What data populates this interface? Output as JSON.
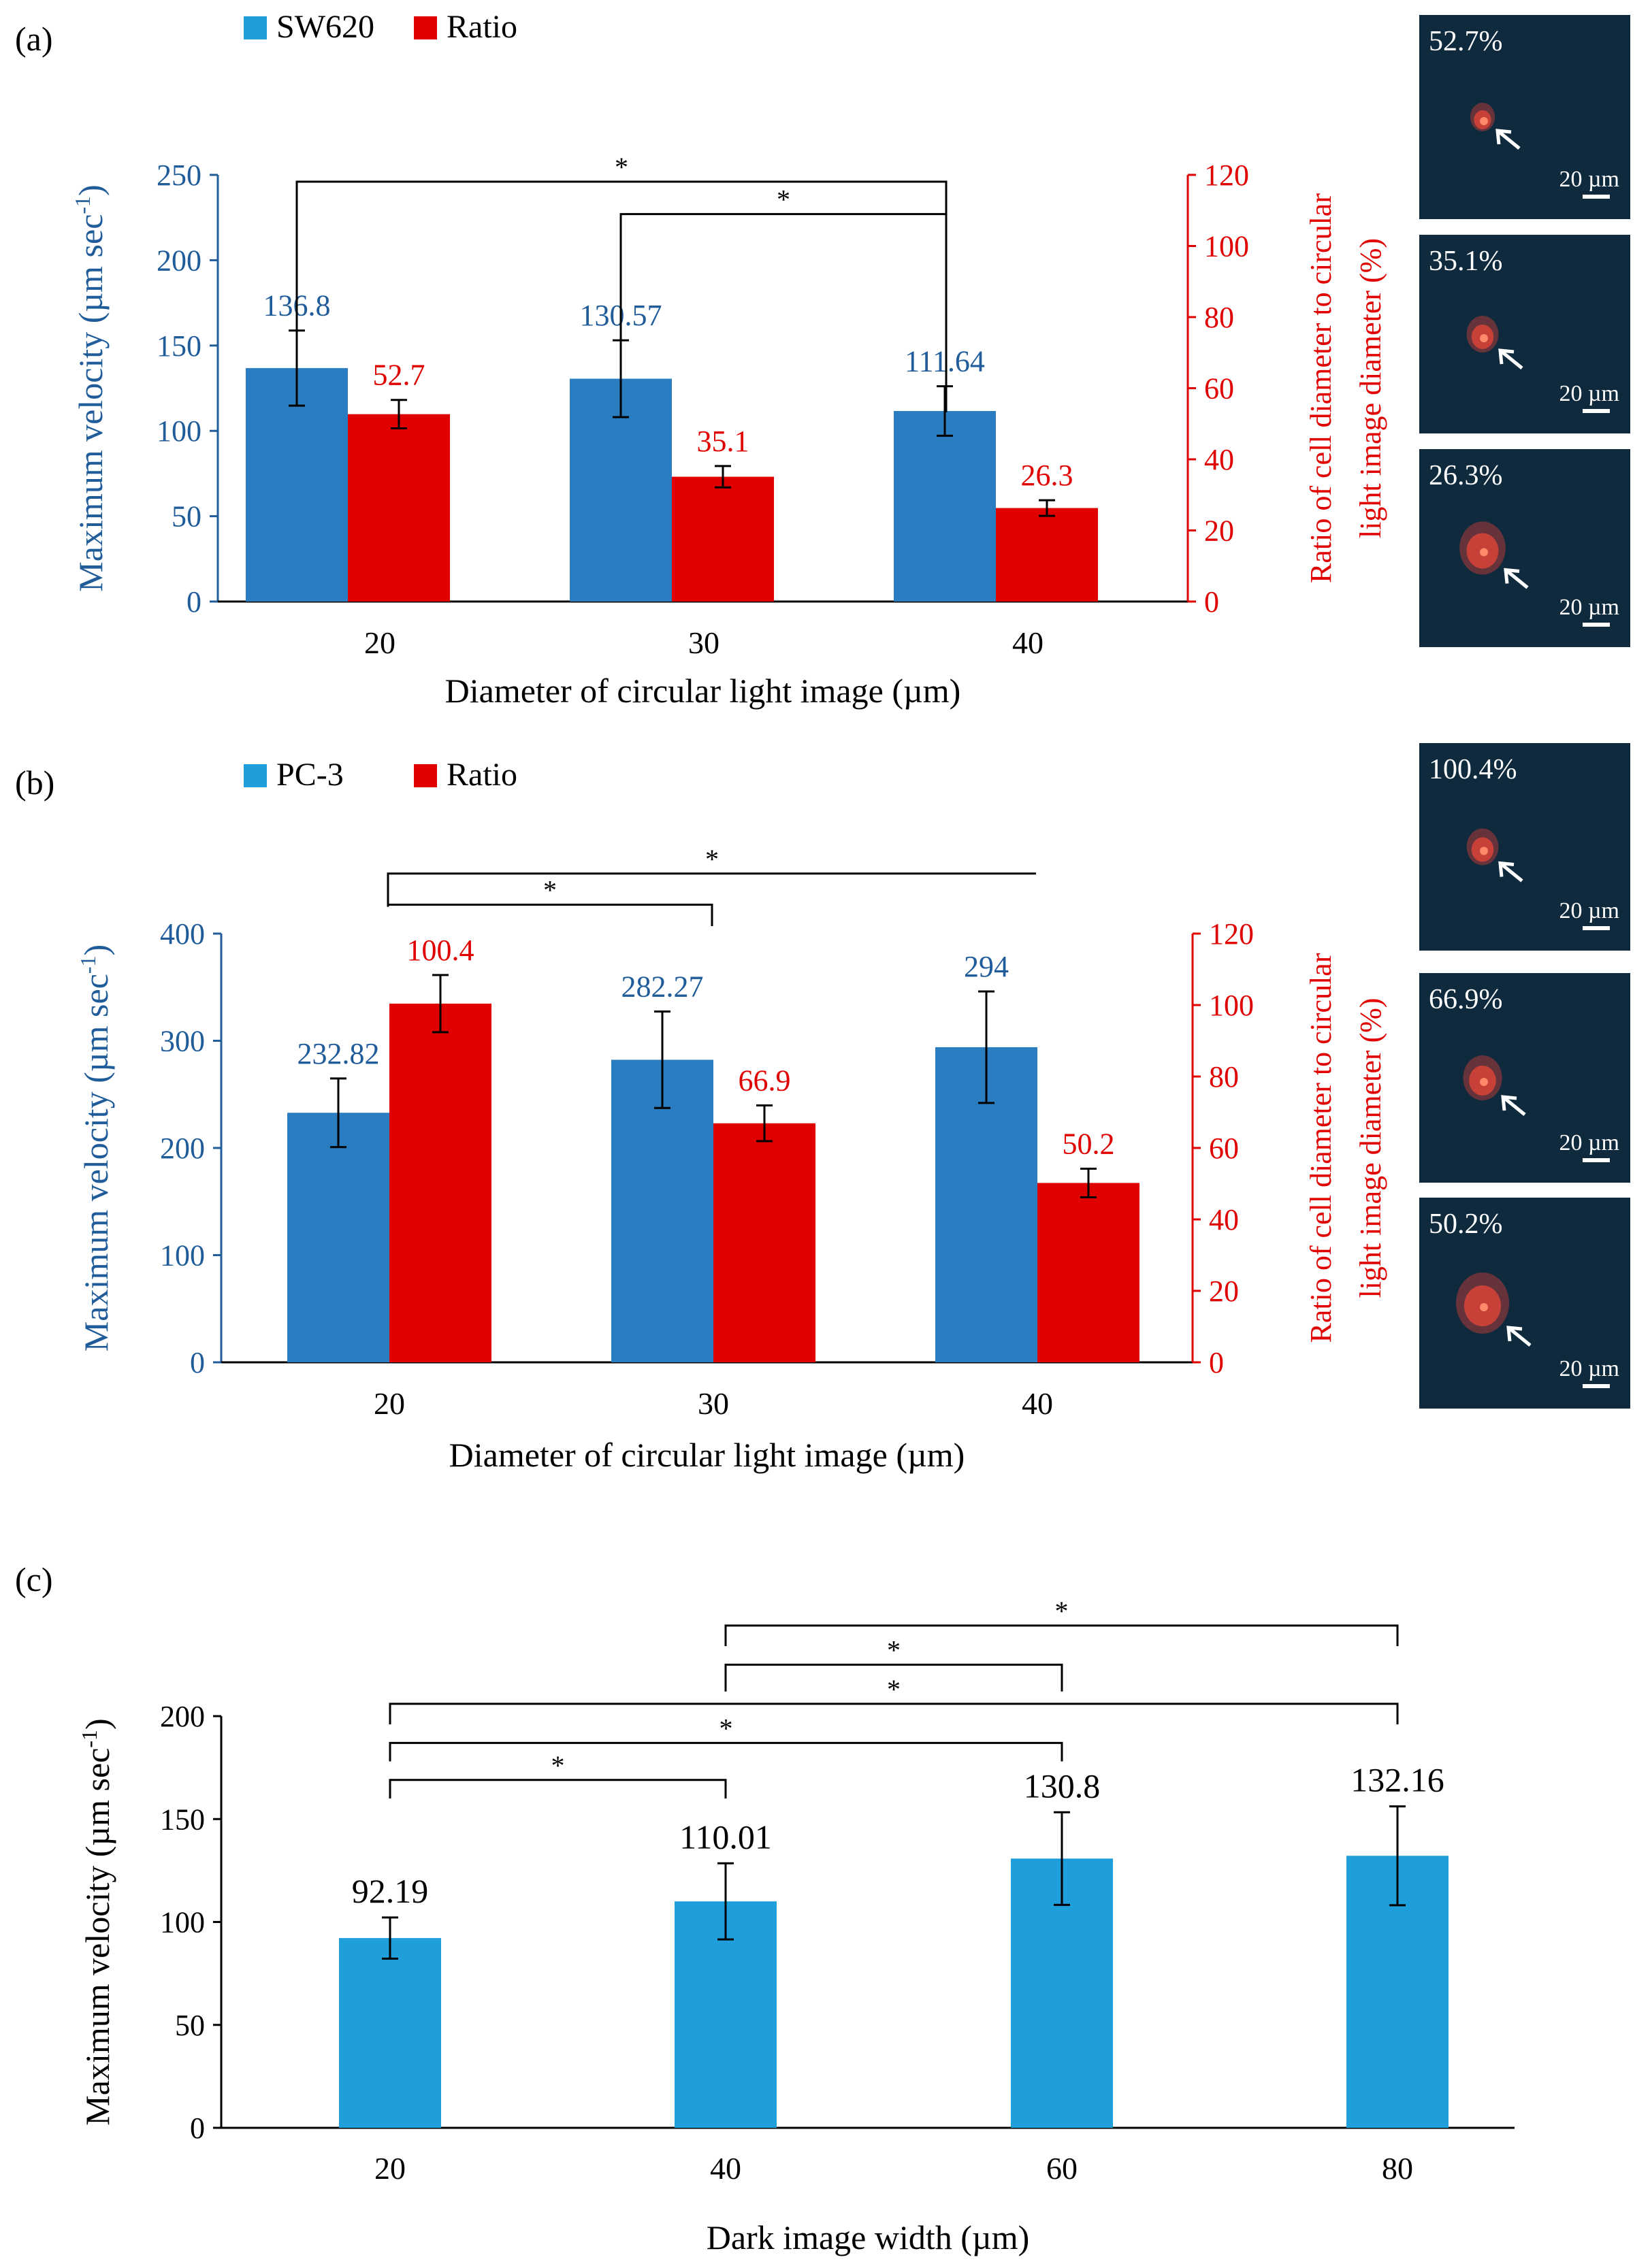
{
  "colors": {
    "blue_dark": "#2A7DC0",
    "blue_light": "#1E9FDB",
    "red": "#E00000",
    "axis_blue": "#1F5C99",
    "axis_red": "#E00000",
    "black": "#000000",
    "micro_bg": "#0E2A3C"
  },
  "chart_data": [
    {
      "id": "a",
      "type": "bar",
      "panel_label": "(a)",
      "categories": [
        "20",
        "30",
        "40"
      ],
      "xlabel": "Diameter of circular light image (µm)",
      "ylabel": "Maximum velocity (µm sec",
      "ylabel_sup": "-1",
      "ylabel_end": ")",
      "y2label_line1": "Ratio of cell diameter to circular",
      "y2label_line2": "light image diameter (%)",
      "ylim": [
        0,
        250
      ],
      "yticks": [
        0,
        50,
        100,
        150,
        200,
        250
      ],
      "y2lim": [
        0,
        120
      ],
      "y2ticks": [
        0,
        20,
        40,
        60,
        80,
        100,
        120
      ],
      "series": [
        {
          "name": "SW620",
          "axis": "left",
          "color": "#2A7DC0",
          "label_color": "#1F5C99",
          "values": [
            136.8,
            130.57,
            111.64
          ],
          "errors": [
            22,
            22.5,
            14.5
          ],
          "labels": [
            "136.8",
            "130.57",
            "111.64"
          ]
        },
        {
          "name": "Ratio",
          "axis": "right",
          "color": "#E00000",
          "label_color": "#E00000",
          "values": [
            52.7,
            35.1,
            26.3
          ],
          "errors": [
            4,
            3,
            2.2
          ],
          "labels": [
            "52.7",
            "35.1",
            "26.3"
          ]
        }
      ],
      "legend": [
        "SW620",
        "Ratio"
      ],
      "significance": [
        {
          "from": 0,
          "to": 2,
          "level": 246,
          "drop_to": [
            159,
            111
          ],
          "label": "*"
        },
        {
          "from": 1,
          "to": 2,
          "level": 227,
          "drop_to": [
            153,
            111
          ],
          "label": "*"
        }
      ],
      "micrographs": [
        {
          "pct": "52.7%",
          "scale": "20 µm"
        },
        {
          "pct": "35.1%",
          "scale": "20 µm"
        },
        {
          "pct": "26.3%",
          "scale": "20 µm"
        }
      ]
    },
    {
      "id": "b",
      "type": "bar",
      "panel_label": "(b)",
      "categories": [
        "20",
        "30",
        "40"
      ],
      "xlabel": "Diameter of circular light image (µm)",
      "ylabel": "Maximum velocity (µm sec",
      "ylabel_sup": "-1",
      "ylabel_end": ")",
      "y2label_line1": "Ratio of cell diameter to circular",
      "y2label_line2": "light image diameter (%)",
      "ylim": [
        0,
        400
      ],
      "yticks": [
        0,
        100,
        200,
        300,
        400
      ],
      "y2lim": [
        0,
        120
      ],
      "y2ticks": [
        0,
        20,
        40,
        60,
        80,
        100,
        120
      ],
      "series": [
        {
          "name": "PC-3",
          "axis": "left",
          "color": "#2A7DC0",
          "label_color": "#1F5C99",
          "values": [
            232.82,
            282.27,
            294
          ],
          "errors": [
            32,
            45,
            52
          ],
          "labels": [
            "232.82",
            "282.27",
            "294"
          ]
        },
        {
          "name": "Ratio",
          "axis": "right",
          "color": "#E00000",
          "label_color": "#E00000",
          "values": [
            100.4,
            66.9,
            50.2
          ],
          "errors": [
            8,
            5,
            4
          ],
          "labels": [
            "100.4",
            "66.9",
            "50.2"
          ]
        }
      ],
      "legend": [
        "PC-3",
        "Ratio"
      ],
      "significance": [
        {
          "from": 0,
          "to": 2,
          "level": 456,
          "drop_to": [
            425,
            456
          ],
          "label": "*"
        },
        {
          "from": 0,
          "to": 1,
          "level": 427,
          "drop_to": [
            427,
            407
          ],
          "label": "*"
        }
      ],
      "micrographs": [
        {
          "pct": "100.4%",
          "scale": "20 µm"
        },
        {
          "pct": "66.9%",
          "scale": "20 µm"
        },
        {
          "pct": "50.2%",
          "scale": "20 µm"
        }
      ]
    },
    {
      "id": "c",
      "type": "bar",
      "panel_label": "(c)",
      "categories": [
        "20",
        "40",
        "60",
        "80"
      ],
      "xlabel": "Dark image width (µm)",
      "ylabel": "Maximum velocity (µm sec",
      "ylabel_sup": "-1",
      "ylabel_end": ")",
      "ylim": [
        0,
        200
      ],
      "yticks": [
        0,
        50,
        100,
        150,
        200
      ],
      "series": [
        {
          "name": "Maximum velocity",
          "axis": "left",
          "color": "#1E9FDB",
          "label_color": "#000000",
          "values": [
            92.19,
            110.01,
            130.8,
            132.16
          ],
          "errors": [
            10,
            18.5,
            22.5,
            24
          ],
          "labels": [
            "92.19",
            "110.01",
            "130.8",
            "132.16"
          ]
        }
      ],
      "significance": [
        {
          "from": 1,
          "to": 3,
          "level": 244,
          "drop_to": [
            234,
            234
          ],
          "label": "*"
        },
        {
          "from": 1,
          "to": 2,
          "level": 225,
          "drop_to": [
            212,
            212
          ],
          "label": "*"
        },
        {
          "from": 0,
          "to": 3,
          "level": 206,
          "drop_to": [
            196,
            196
          ],
          "label": "*"
        },
        {
          "from": 0,
          "to": 2,
          "level": 187,
          "drop_to": [
            178,
            178
          ],
          "label": "*"
        },
        {
          "from": 0,
          "to": 1,
          "level": 169,
          "drop_to": [
            160,
            160
          ],
          "label": "*"
        }
      ]
    }
  ]
}
